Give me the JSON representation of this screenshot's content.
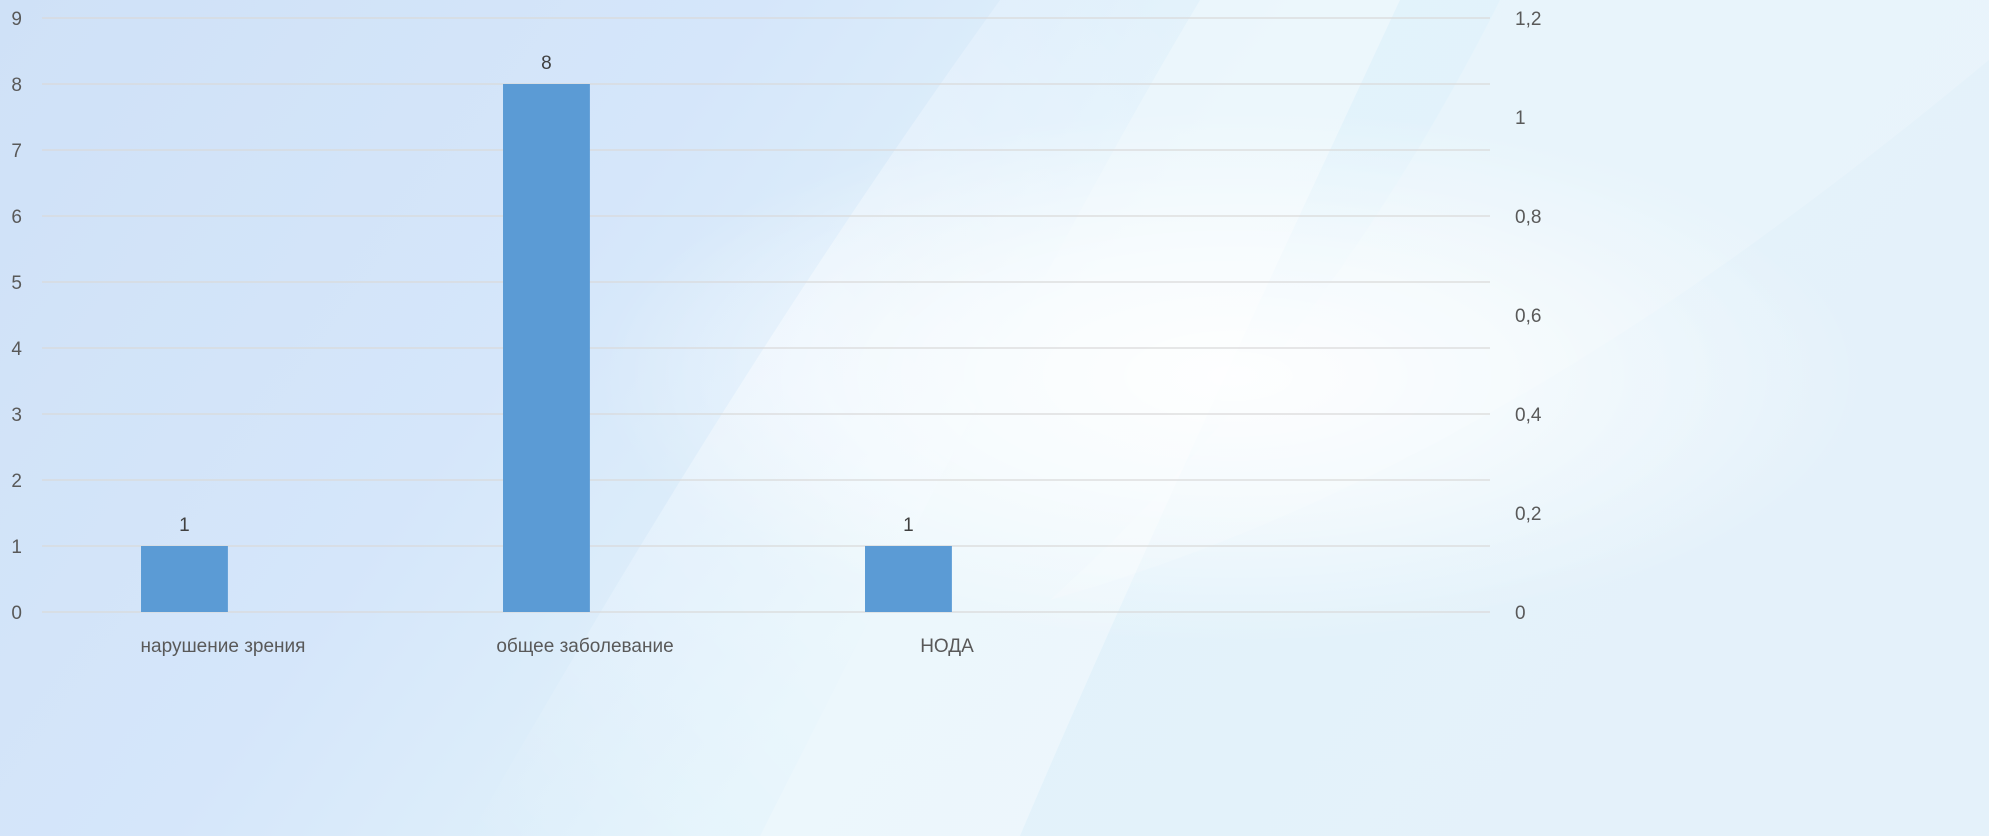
{
  "chart_data": {
    "type": "bar",
    "title": "",
    "xlabel": "",
    "ylabel": "",
    "categories": [
      "нарушение зрения",
      "общее заболевание",
      "НОДА"
    ],
    "series": [
      {
        "values": [
          1,
          8,
          1
        ]
      }
    ],
    "ylim": [
      0,
      9
    ],
    "y_ticks": [
      "0",
      "1",
      "2",
      "3",
      "4",
      "5",
      "6",
      "7",
      "8",
      "9"
    ],
    "y2lim": [
      0,
      1.2
    ],
    "y2_ticks": [
      "0",
      "0,2",
      "0,4",
      "0,6",
      "0,8",
      "1",
      "1,2"
    ],
    "grid": true,
    "legend": "none",
    "data_labels": true,
    "colors": {
      "bar": "#5B9BD5",
      "grid": "#D9D9D9",
      "text": "#595959"
    }
  }
}
